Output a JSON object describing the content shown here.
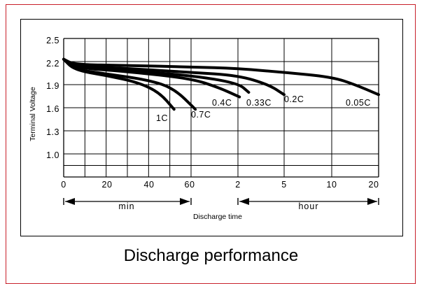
{
  "caption": "Discharge performance",
  "chart_data": {
    "type": "line",
    "ylabel": "Terminal Voltage",
    "xlabel": "Discharge time",
    "grid": true,
    "y_ticks": [
      "2.5",
      "2.2",
      "1.9",
      "1.6",
      "1.3",
      "1.0"
    ],
    "y_tick_values": [
      2.5,
      2.2,
      1.9,
      1.6,
      1.3,
      1.0
    ],
    "ylim": [
      0.7,
      2.5
    ],
    "x_ticks_min": [
      "0",
      "20",
      "40",
      "60"
    ],
    "x_ticks_hour": [
      "2",
      "5",
      "10",
      "20"
    ],
    "x_ticks_min_values": [
      0,
      20,
      40,
      60
    ],
    "x_ticks_hour_values": [
      2,
      5,
      10,
      20
    ],
    "segments": [
      {
        "unit": "min",
        "range": [
          0,
          60
        ]
      },
      {
        "unit": "hour",
        "range": [
          1,
          20
        ]
      }
    ],
    "series": [
      {
        "name": "1C",
        "points": [
          [
            0,
            2.23
          ],
          [
            5,
            2.09
          ],
          [
            20,
            2.02
          ],
          [
            35,
            1.93
          ],
          [
            45,
            1.8
          ],
          [
            52,
            1.58
          ]
        ]
      },
      {
        "name": "0.7C",
        "points": [
          [
            0,
            2.23
          ],
          [
            5,
            2.1
          ],
          [
            20,
            2.04
          ],
          [
            40,
            1.96
          ],
          [
            52,
            1.85
          ],
          [
            62,
            1.58
          ]
        ]
      },
      {
        "name": "0.4C",
        "points": [
          [
            0,
            2.23
          ],
          [
            5,
            2.12
          ],
          [
            30,
            2.07
          ],
          [
            60,
            1.98
          ],
          [
            1.6,
            1.86
          ],
          [
            2.1,
            1.74
          ]
        ]
      },
      {
        "name": "0.33C",
        "points": [
          [
            0,
            2.23
          ],
          [
            5,
            2.13
          ],
          [
            30,
            2.08
          ],
          [
            60,
            2.02
          ],
          [
            2,
            1.92
          ],
          [
            2.7,
            1.8
          ]
        ]
      },
      {
        "name": "0.2C",
        "points": [
          [
            0,
            2.23
          ],
          [
            5,
            2.14
          ],
          [
            30,
            2.11
          ],
          [
            60,
            2.06
          ],
          [
            2,
            2.02
          ],
          [
            4,
            1.9
          ],
          [
            5.0,
            1.77
          ]
        ]
      },
      {
        "name": "0.05C",
        "points": [
          [
            0,
            2.23
          ],
          [
            5,
            2.16
          ],
          [
            30,
            2.15
          ],
          [
            60,
            2.13
          ],
          [
            2,
            2.11
          ],
          [
            5,
            2.06
          ],
          [
            10,
            2.0
          ],
          [
            15,
            1.9
          ],
          [
            20,
            1.77
          ]
        ]
      }
    ],
    "labels": [
      "1C",
      "0.7C",
      "0.4C",
      "0.33C",
      "0.2C",
      "0.05C"
    ]
  }
}
